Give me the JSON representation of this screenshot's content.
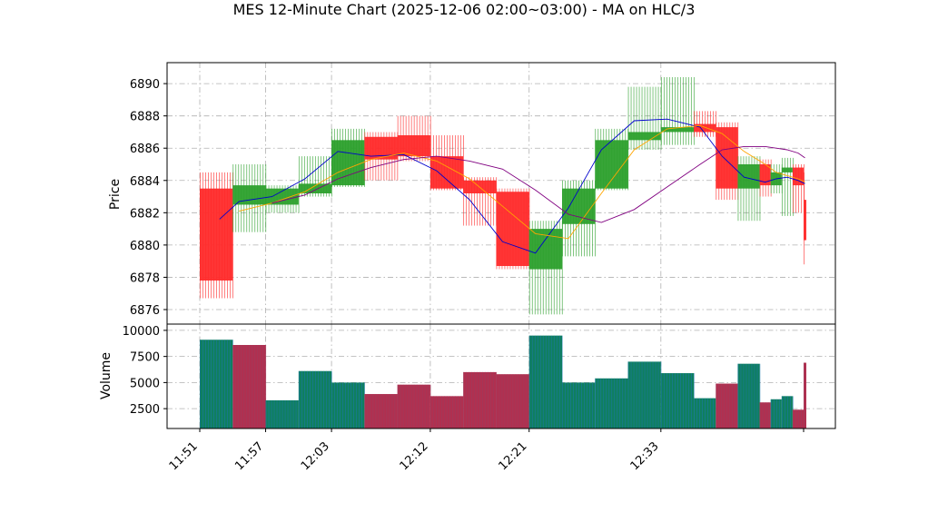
{
  "title": "MES 12-Minute Chart (2025-12-06 02:00~03:00) - MA on HLC/3",
  "colors": {
    "up": "#2ca02c",
    "down": "#ff2a2a",
    "ma_fast": "#0000cc",
    "ma_mid": "#ffa500",
    "ma_slow": "#800080",
    "vol_up_edge": "#1f77b4",
    "vol_down_edge": "#9b3f5f",
    "grid": "#b0b0b0"
  },
  "chart_data": [
    {
      "type": "candlestick",
      "ylabel": "Price",
      "ylim": [
        6875.1,
        6891.3
      ],
      "yticks": [
        6876,
        6878,
        6880,
        6882,
        6884,
        6886,
        6888,
        6890
      ],
      "xticks": [
        "11:51",
        "11:57",
        "12:03",
        "12:12",
        "12:21",
        "12:33"
      ],
      "grid": true,
      "bars": [
        {
          "x": "11:51",
          "open": 6883.5,
          "high": 6884.5,
          "low": 6876.7,
          "close": 6877.8
        },
        {
          "x": "11:54",
          "open": 6882.5,
          "high": 6885.0,
          "low": 6880.8,
          "close": 6883.7
        },
        {
          "x": "11:57",
          "open": 6882.5,
          "high": 6883.7,
          "low": 6882.0,
          "close": 6883.5
        },
        {
          "x": "12:00",
          "open": 6883.2,
          "high": 6885.5,
          "low": 6883.0,
          "close": 6883.8
        },
        {
          "x": "12:03",
          "open": 6883.7,
          "high": 6887.2,
          "low": 6883.6,
          "close": 6886.5
        },
        {
          "x": "12:06",
          "open": 6886.7,
          "high": 6887.0,
          "low": 6884.0,
          "close": 6885.3
        },
        {
          "x": "12:09",
          "open": 6886.8,
          "high": 6888.0,
          "low": 6885.2,
          "close": 6885.5
        },
        {
          "x": "12:12",
          "open": 6885.5,
          "high": 6886.8,
          "low": 6883.4,
          "close": 6883.5
        },
        {
          "x": "12:15",
          "open": 6884.0,
          "high": 6884.2,
          "low": 6881.2,
          "close": 6883.2
        },
        {
          "x": "12:18",
          "open": 6883.3,
          "high": 6883.5,
          "low": 6878.5,
          "close": 6878.7
        },
        {
          "x": "12:21",
          "open": 6878.5,
          "high": 6881.5,
          "low": 6875.7,
          "close": 6881.0
        },
        {
          "x": "12:24",
          "open": 6881.3,
          "high": 6884.0,
          "low": 6879.3,
          "close": 6883.5
        },
        {
          "x": "12:27",
          "open": 6883.5,
          "high": 6887.2,
          "low": 6883.4,
          "close": 6886.5
        },
        {
          "x": "12:30",
          "open": 6886.5,
          "high": 6889.8,
          "low": 6885.9,
          "close": 6887.0
        },
        {
          "x": "12:33",
          "open": 6887.0,
          "high": 6890.4,
          "low": 6886.2,
          "close": 6887.3
        },
        {
          "x": "12:36",
          "open": 6887.5,
          "high": 6888.3,
          "low": 6886.7,
          "close": 6887.0
        },
        {
          "x": "12:38",
          "open": 6887.3,
          "high": 6887.6,
          "low": 6882.8,
          "close": 6883.5
        },
        {
          "x": "12:40",
          "open": 6883.5,
          "high": 6885.5,
          "low": 6881.5,
          "close": 6885.0
        },
        {
          "x": "12:42",
          "open": 6885.0,
          "high": 6885.3,
          "low": 6883.0,
          "close": 6883.7
        },
        {
          "x": "12:43",
          "open": 6883.7,
          "high": 6885.0,
          "low": 6883.2,
          "close": 6884.5
        },
        {
          "x": "12:44",
          "open": 6884.5,
          "high": 6885.4,
          "low": 6881.8,
          "close": 6884.8
        },
        {
          "x": "12:45",
          "open": 6884.8,
          "high": 6885.0,
          "low": 6882.0,
          "close": 6883.7
        },
        {
          "x": "12:46",
          "open": 6882.8,
          "high": 6884.5,
          "low": 6878.8,
          "close": 6880.3
        }
      ],
      "moving_averages": [
        {
          "color": "#0000cc",
          "values": [
            6881.6,
            6882.7,
            6883.0,
            6884.1,
            6885.8,
            6885.5,
            6885.6,
            6884.6,
            6882.8,
            6880.2,
            6879.5,
            6882.3,
            6885.9,
            6887.7,
            6887.8,
            6887.3,
            6885.5,
            6884.2,
            6883.9,
            6884.1,
            6884.2,
            6884.0,
            6883.8
          ]
        },
        {
          "color": "#ffa500",
          "values": [
            null,
            6882.1,
            6882.6,
            6883.3,
            6884.5,
            6885.3,
            6885.7,
            6885.2,
            6884.1,
            6882.4,
            6880.7,
            6880.4,
            6883.2,
            6885.9,
            6887.2,
            6887.4,
            6886.9,
            6885.8,
            6885.0,
            6884.5,
            6884.3,
            6884.1,
            6883.9
          ]
        },
        {
          "color": "#800080",
          "values": [
            null,
            null,
            6882.6,
            6883.1,
            6884.1,
            6884.8,
            6885.3,
            6885.5,
            6885.2,
            6884.7,
            6883.4,
            6881.9,
            6881.4,
            6882.2,
            6883.6,
            6885.0,
            6885.9,
            6886.1,
            6886.1,
            6886.0,
            6885.9,
            6885.7,
            6885.4
          ]
        }
      ]
    },
    {
      "type": "bar",
      "ylabel": "Volume",
      "ylim": [
        600,
        10600
      ],
      "yticks": [
        2500,
        5000,
        7500,
        10000
      ],
      "grid": true,
      "values": [
        9100,
        8600,
        3300,
        6100,
        5000,
        3900,
        4800,
        3700,
        6000,
        5800,
        9500,
        5000,
        5400,
        7000,
        5900,
        3500,
        4900,
        6800,
        3100,
        3400,
        3700,
        2400,
        6900
      ],
      "direction": [
        "up",
        "down",
        "up",
        "up",
        "up",
        "down",
        "down",
        "down",
        "down",
        "down",
        "up",
        "up",
        "up",
        "up",
        "up",
        "up",
        "down",
        "up",
        "down",
        "up",
        "up",
        "down",
        "down"
      ]
    }
  ]
}
